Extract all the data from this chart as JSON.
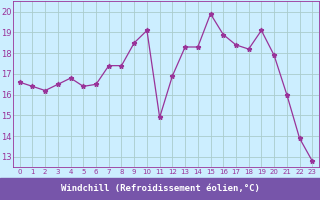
{
  "x": [
    0,
    1,
    2,
    3,
    4,
    5,
    6,
    7,
    8,
    9,
    10,
    11,
    12,
    13,
    14,
    15,
    16,
    17,
    18,
    19,
    20,
    21,
    22,
    23
  ],
  "y": [
    16.6,
    16.4,
    16.2,
    16.5,
    16.8,
    16.4,
    16.5,
    17.4,
    17.4,
    18.5,
    19.1,
    14.9,
    16.9,
    18.3,
    18.3,
    19.9,
    18.9,
    18.4,
    18.2,
    19.1,
    17.9,
    16.0,
    13.9,
    12.8
  ],
  "line_color": "#993399",
  "marker": "*",
  "bg_color": "#cceeff",
  "grid_color": "#aacccc",
  "xlabel": "Windchill (Refroidissement éolien,°C)",
  "xlim": [
    -0.5,
    23.5
  ],
  "ylim": [
    12.5,
    20.5
  ],
  "yticks": [
    13,
    14,
    15,
    16,
    17,
    18,
    19,
    20
  ],
  "xticks": [
    0,
    1,
    2,
    3,
    4,
    5,
    6,
    7,
    8,
    9,
    10,
    11,
    12,
    13,
    14,
    15,
    16,
    17,
    18,
    19,
    20,
    21,
    22,
    23
  ],
  "xlabel_color": "#ffffff",
  "xlabel_bg": "#7755aa",
  "tick_color": "#993399",
  "x_tick_fontsize": 5.0,
  "y_tick_fontsize": 6.0,
  "label_fontsize": 6.5
}
